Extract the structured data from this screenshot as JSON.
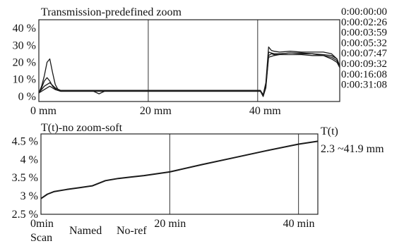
{
  "chart_data": [
    {
      "type": "line",
      "title": "Transmission-predefined zoom",
      "x_unit": "mm",
      "xlim": [
        0,
        55
      ],
      "ylim": [
        -3,
        45
      ],
      "x_ticks": [
        {
          "value": 0,
          "label": "0 mm"
        },
        {
          "value": 20,
          "label": "20 mm"
        },
        {
          "value": 40,
          "label": "40 mm"
        }
      ],
      "y_ticks": [
        {
          "value": 0,
          "label": "0 %"
        },
        {
          "value": 10,
          "label": "10 %"
        },
        {
          "value": 20,
          "label": "20 %"
        },
        {
          "value": 30,
          "label": "30 %"
        },
        {
          "value": 40,
          "label": "40 %"
        }
      ],
      "grid": true,
      "legend": "right",
      "legend_entries": [
        "0:00:00:00",
        "0:00:02:26",
        "0:00:03:59",
        "0:00:05:32",
        "0:00:07:47",
        "0:00:09:32",
        "0:00:16:08",
        "0:00:31:08"
      ],
      "series": [
        {
          "x": [
            0,
            0.5,
            1,
            1.5,
            2,
            2.5,
            3,
            3.5,
            4,
            5,
            10,
            12,
            15,
            20,
            25,
            30,
            35,
            38,
            40.5,
            41,
            41.5,
            42,
            42.5,
            43,
            44,
            46,
            48,
            50,
            52,
            53.5,
            54.5,
            55
          ],
          "y": [
            2,
            6,
            12,
            20,
            22,
            14,
            7,
            4,
            3.5,
            3.5,
            3.5,
            3.5,
            3.5,
            3.5,
            3.5,
            3.5,
            3.5,
            3.5,
            3.5,
            1,
            8,
            29,
            27,
            26.5,
            26,
            26.5,
            26,
            26,
            26,
            25,
            22,
            17
          ]
        },
        {
          "x": [
            0,
            0.5,
            1,
            1.5,
            2,
            2.5,
            3,
            3.5,
            4,
            5,
            10,
            11,
            12,
            15,
            20,
            25,
            30,
            35,
            38,
            40.5,
            41,
            41.5,
            42,
            42.5,
            43,
            44,
            46,
            48,
            50,
            52,
            53.5,
            54.5,
            55
          ],
          "y": [
            2,
            5,
            9,
            11,
            9,
            6,
            4.5,
            3.5,
            3,
            3,
            3,
            1.5,
            3,
            3,
            3,
            3,
            3,
            3,
            3,
            3,
            0.5,
            6,
            24,
            25,
            24.5,
            25,
            25.5,
            25,
            25,
            24,
            23,
            21,
            17
          ]
        },
        {
          "x": [
            0,
            1,
            2,
            3,
            4,
            5,
            10,
            15,
            20,
            25,
            30,
            35,
            38,
            40.5,
            41,
            41.5,
            42,
            42.5,
            43,
            44,
            46,
            48,
            50,
            52,
            53.5,
            54.5,
            55
          ],
          "y": [
            2,
            6,
            8,
            5,
            3.5,
            3.5,
            3.5,
            3.5,
            3.5,
            3.5,
            3.5,
            3.5,
            3.5,
            3.5,
            0,
            7,
            26,
            25.5,
            25,
            25,
            25.5,
            25.5,
            25,
            24.5,
            24,
            22,
            18
          ]
        },
        {
          "x": [
            0,
            1,
            2,
            3,
            4,
            5,
            10,
            15,
            20,
            25,
            30,
            35,
            38,
            40.5,
            41,
            41.5,
            42,
            42.5,
            43,
            44,
            46,
            48,
            50,
            52,
            53.5,
            54.5,
            55
          ],
          "y": [
            2,
            4,
            6,
            4,
            3,
            3,
            3,
            3,
            3,
            3,
            3,
            3,
            3,
            3,
            0,
            5,
            23,
            23.5,
            24,
            24.5,
            24.5,
            24.5,
            24,
            24,
            22,
            20,
            17
          ]
        }
      ]
    },
    {
      "type": "line",
      "title": "T(t)-no zoom-soft",
      "x_unit": "min",
      "xlim": [
        0,
        43
      ],
      "ylim": [
        2.5,
        4.7
      ],
      "x_ticks": [
        {
          "value": 0,
          "label": "0min"
        },
        {
          "value": 20,
          "label": "20 min"
        },
        {
          "value": 40,
          "label": "40 min"
        }
      ],
      "y_ticks": [
        {
          "value": 2.5,
          "label": "2.5 %"
        },
        {
          "value": 3,
          "label": "3 %"
        },
        {
          "value": 3.5,
          "label": "3.5 %"
        },
        {
          "value": 4,
          "label": "4 %"
        },
        {
          "value": 4.5,
          "label": "4.5 %"
        }
      ],
      "grid": true,
      "series": [
        {
          "name": "T(t)",
          "x": [
            0,
            1,
            2,
            4,
            6,
            8,
            10,
            12,
            14,
            16,
            18,
            20,
            25,
            30,
            35,
            40,
            43
          ],
          "y": [
            2.93,
            3.05,
            3.12,
            3.18,
            3.23,
            3.28,
            3.42,
            3.48,
            3.52,
            3.56,
            3.61,
            3.66,
            3.86,
            4.05,
            4.24,
            4.42,
            4.5
          ]
        }
      ],
      "legend_label": "T(t)",
      "annotation": "2.3 ~41.9 mm"
    }
  ],
  "footer": {
    "scan_label": "Scan",
    "named_label": "Named",
    "noref_label": "No-ref"
  }
}
